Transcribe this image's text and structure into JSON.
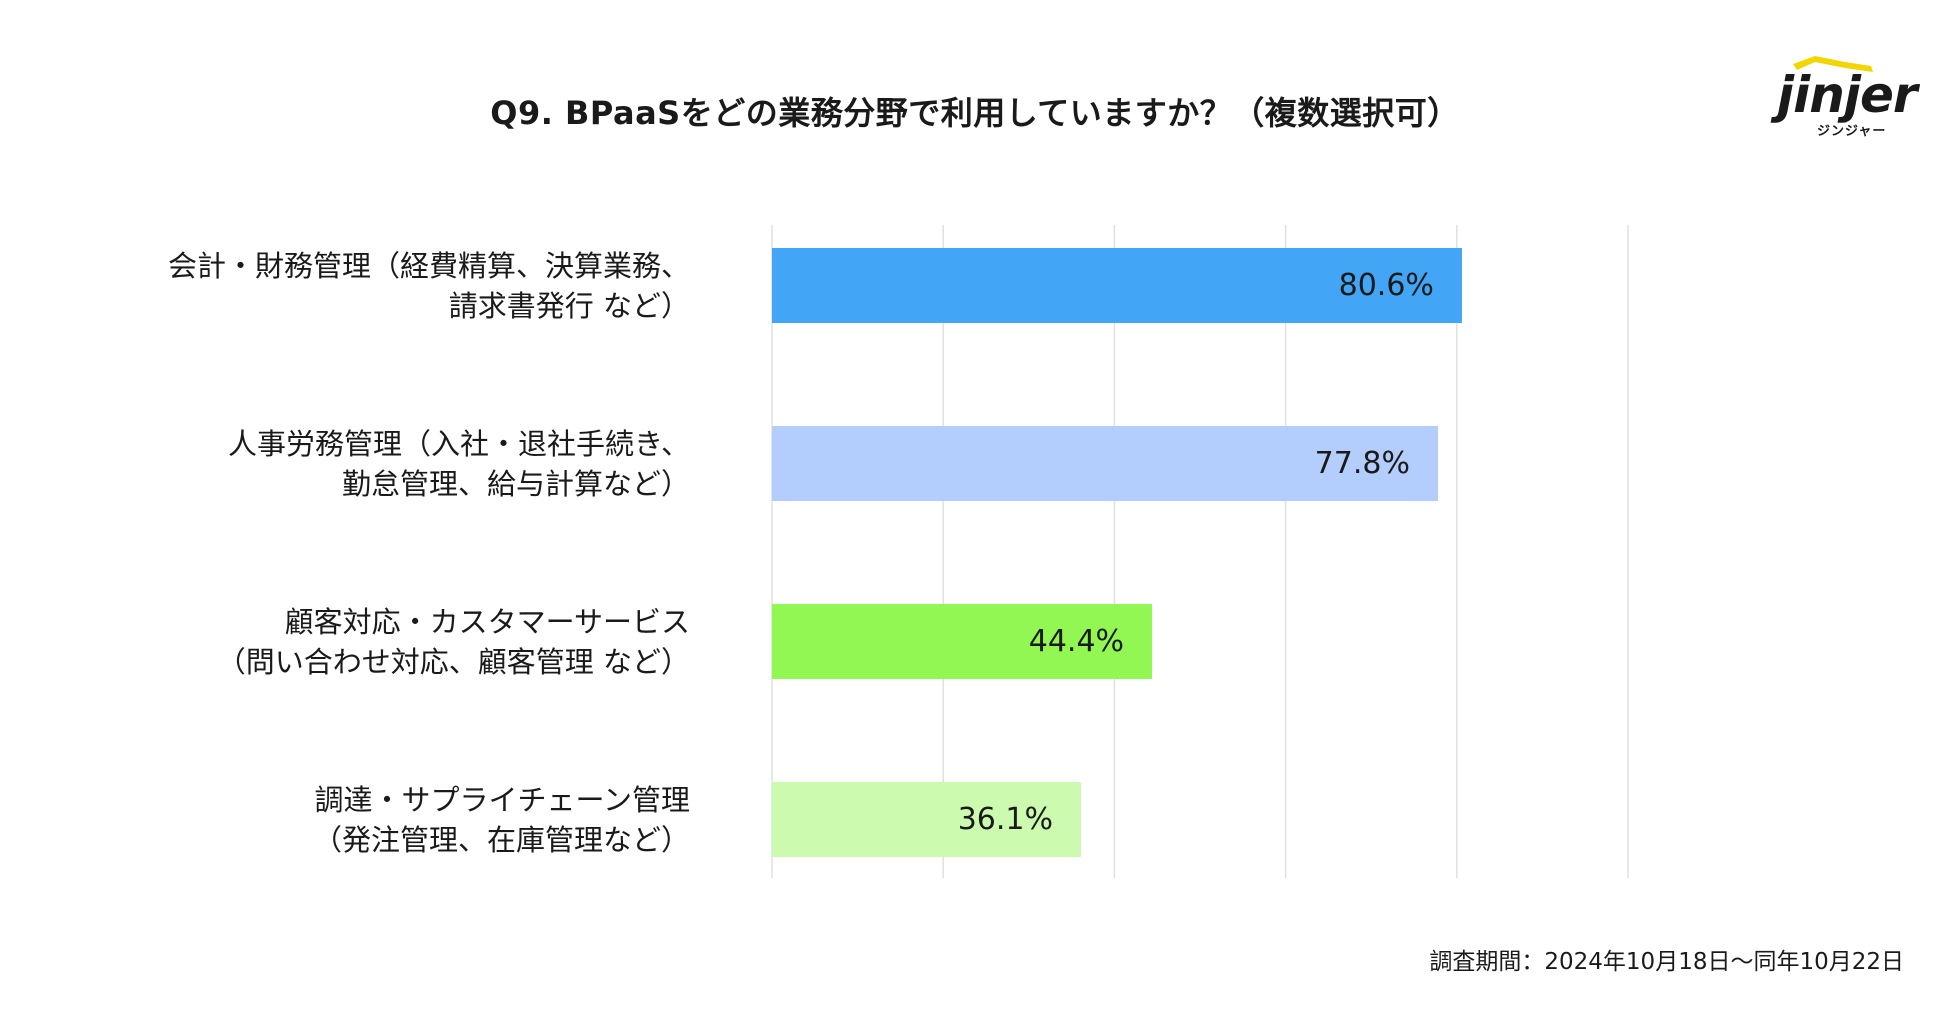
{
  "logo": {
    "word": "jinjer",
    "sub": "ジンジャー",
    "icon": "jinjer-roof-logo",
    "accent": "#f2d600"
  },
  "footnote": "調査期間：2024年10月18日〜同年10月22日",
  "chart_data": {
    "type": "bar",
    "orientation": "horizontal",
    "title": "Q9. BPaaSをどの業務分野で利用していますか？（複数選択可）",
    "xlabel": "",
    "ylabel": "",
    "xlim": [
      0,
      100
    ],
    "grid": true,
    "legend": "none",
    "categories": [
      [
        "会計・財務管理（経費精算、決算業務、",
        "請求書発行 など）"
      ],
      [
        "人事労務管理（入社・退社手続き、",
        "勤怠管理、給与計算など）"
      ],
      [
        "顧客対応・カスタマーサービス",
        "（問い合わせ対応、顧客管理 など）"
      ],
      [
        "調達・サプライチェーン管理",
        "（発注管理、在庫管理など）"
      ]
    ],
    "values": [
      80.6,
      77.8,
      44.4,
      36.1
    ],
    "value_labels": [
      "80.6%",
      "77.8%",
      "44.4%",
      "36.1%"
    ],
    "colors": [
      "#42a5f5",
      "#b3cdfd",
      "#92f752",
      "#ccfbb0"
    ]
  }
}
